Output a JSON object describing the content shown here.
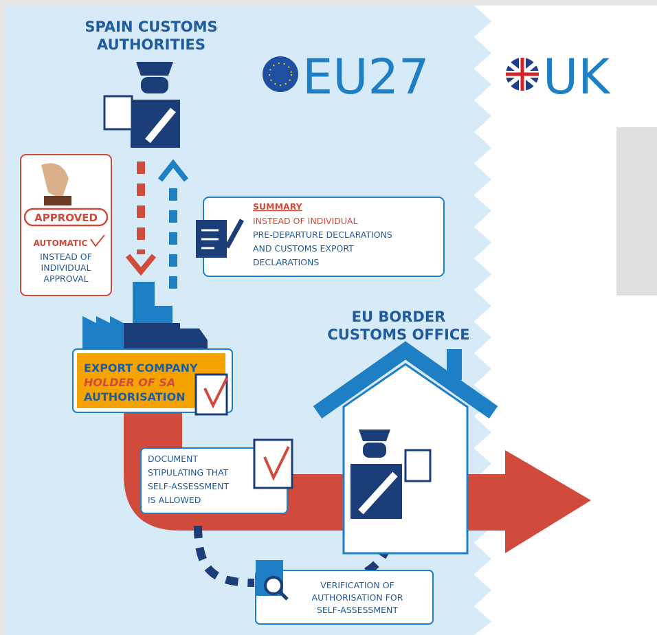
{
  "header": {
    "authority": [
      "SPAIN CUSTOMS",
      "AUTHORITIES"
    ],
    "eu_label": "EU27",
    "uk_label": "UK"
  },
  "approval": {
    "stamp": "APPROVED",
    "automatic": "AUTOMATIC",
    "note": [
      "INSTEAD OF",
      "INDIVIDUAL",
      "APPROVAL"
    ]
  },
  "summary": {
    "title": "SUMMARY",
    "lines": [
      "INSTEAD OF INDIVIDUAL",
      "PRE-DEPARTURE DECLARATIONS",
      "AND CUSTOMS EXPORT",
      "DECLARATIONS"
    ]
  },
  "company": {
    "lines": [
      "EXPORT COMPANY",
      "HOLDER OF SA",
      "AUTHORISATION"
    ]
  },
  "border_office": [
    "EU BORDER",
    "CUSTOMS OFFICE"
  ],
  "document": [
    "DOCUMENT",
    "STIPULATING THAT",
    "SELF-ASSESSMENT",
    "IS ALLOWED"
  ],
  "verification": [
    "VERIFICATION OF",
    "AUTHORISATION FOR",
    "SELF-ASSESSMENT"
  ]
}
